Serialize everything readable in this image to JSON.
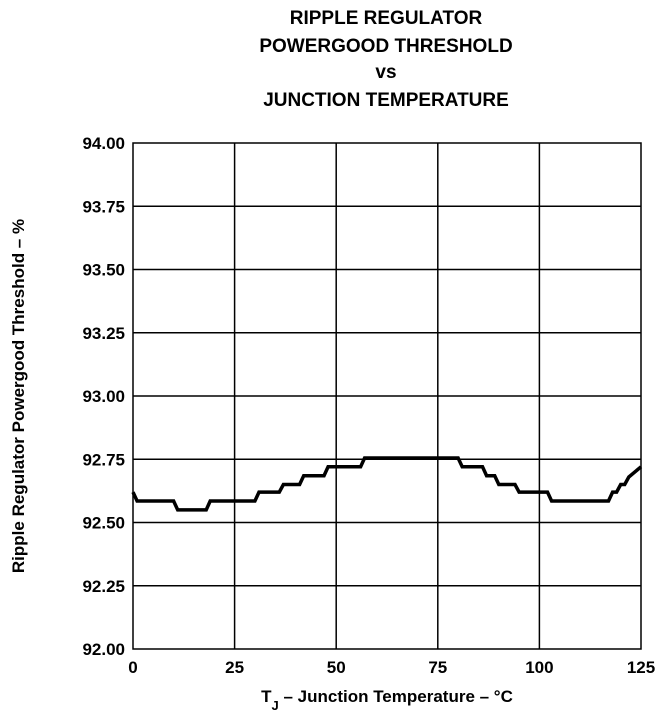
{
  "chart_data": {
    "type": "line",
    "title_lines": [
      "RIPPLE REGULATOR",
      "POWERGOOD THRESHOLD",
      "vs",
      "JUNCTION TEMPERATURE"
    ],
    "xlabel": {
      "main": "T",
      "subscript": "J",
      "rest": " – Junction Temperature – °C"
    },
    "ylabel": "Ripple Regulator Powergood Threshold – %",
    "xlim": [
      0,
      125
    ],
    "ylim": [
      92.0,
      94.0
    ],
    "x_ticks": [
      0,
      25,
      50,
      75,
      100,
      125
    ],
    "y_ticks": [
      92.0,
      92.25,
      92.5,
      92.75,
      93.0,
      93.25,
      93.5,
      93.75,
      94.0
    ],
    "x_tick_labels": [
      "0",
      "25",
      "50",
      "75",
      "100",
      "125"
    ],
    "y_tick_labels": [
      "92.00",
      "92.25",
      "92.50",
      "92.75",
      "93.00",
      "93.25",
      "93.50",
      "93.75",
      "94.00"
    ],
    "grid": true,
    "series": [
      {
        "x": [
          0,
          1,
          4,
          10,
          11,
          18,
          19,
          30,
          31,
          36,
          37,
          41,
          42,
          47,
          48,
          52,
          53,
          56,
          57,
          80,
          81,
          86,
          87,
          89,
          90,
          94,
          95,
          98,
          99,
          102,
          103,
          117,
          118,
          119,
          120,
          121,
          122,
          125
        ],
        "y": [
          92.62,
          92.585,
          92.585,
          92.585,
          92.55,
          92.55,
          92.585,
          92.585,
          92.62,
          92.62,
          92.65,
          92.65,
          92.685,
          92.685,
          92.72,
          92.72,
          92.72,
          92.72,
          92.755,
          92.755,
          92.72,
          92.72,
          92.685,
          92.685,
          92.65,
          92.65,
          92.62,
          92.62,
          92.62,
          92.62,
          92.585,
          92.585,
          92.62,
          92.62,
          92.65,
          92.65,
          92.68,
          92.72
        ]
      }
    ]
  }
}
